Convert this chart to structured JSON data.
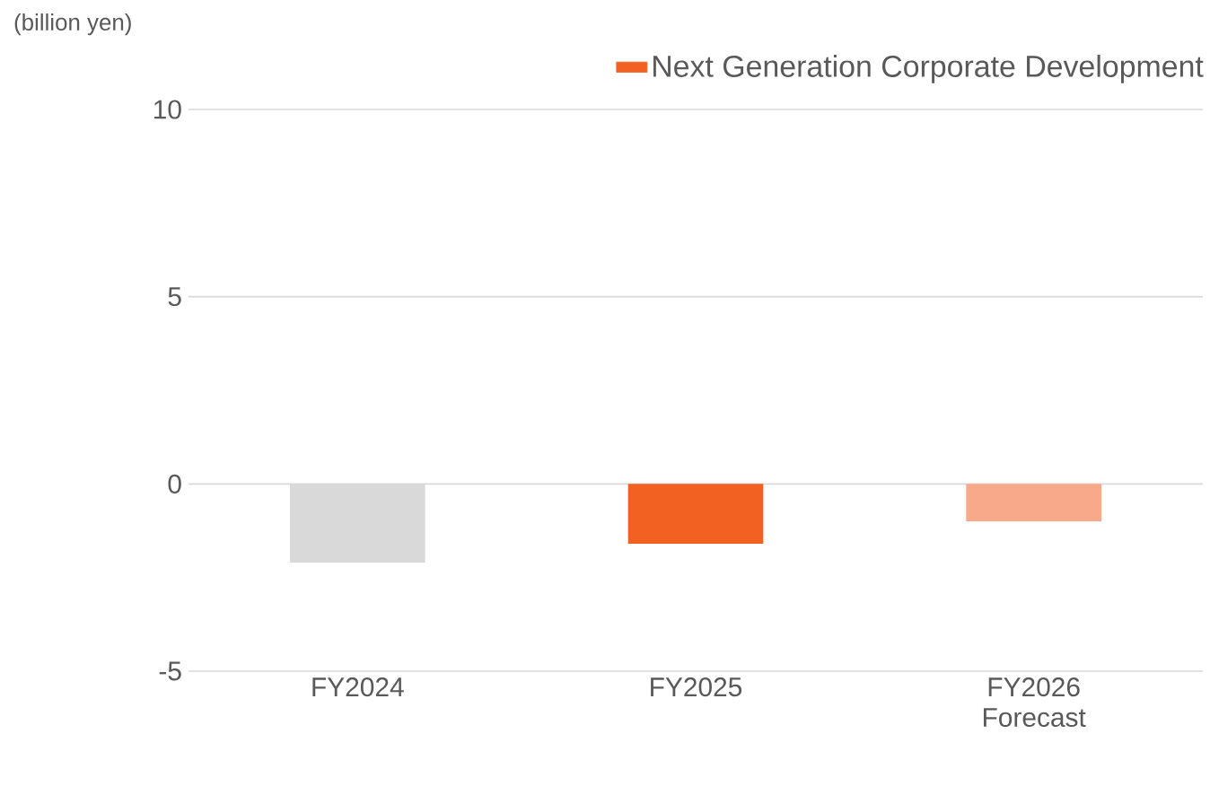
{
  "chart_data": {
    "type": "bar",
    "ylabel": "(billion yen)",
    "categories": [
      "FY2024",
      "FY2025",
      "FY2026 Forecast"
    ],
    "series": [
      {
        "name": "Next Generation Corporate Development",
        "color": "#f26122",
        "colors": [
          "#d9d9d9",
          "#f26122",
          "#f7a98a"
        ],
        "values": [
          -2.1,
          -1.6,
          -1.0
        ]
      }
    ],
    "ylim": [
      -5,
      10
    ],
    "yticks": [
      -5,
      0,
      5,
      10
    ],
    "grid": "y",
    "legend": "top right"
  }
}
